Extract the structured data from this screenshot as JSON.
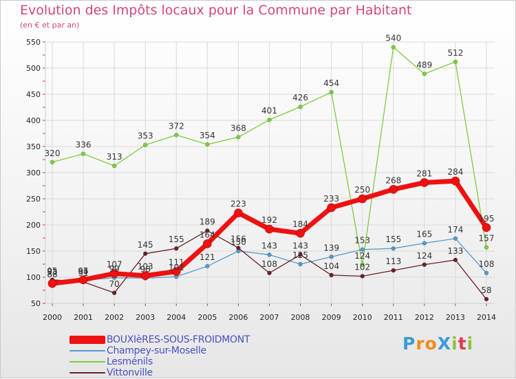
{
  "chart_data": {
    "type": "line",
    "title": "Evolution des Impôts locaux pour la Commune par Habitant",
    "subtitle": "(en € et par an)",
    "xlabel": "",
    "ylabel": "",
    "x": [
      "2000",
      "2001",
      "2002",
      "2003",
      "2004",
      "2005",
      "2006",
      "2007",
      "2008",
      "2009",
      "2010",
      "2011",
      "2012",
      "2013",
      "2014"
    ],
    "ylim": [
      50,
      550
    ],
    "yticks": [
      "50",
      "100",
      "150",
      "200",
      "250",
      "300",
      "350",
      "400",
      "450",
      "500",
      "550"
    ],
    "grid": true,
    "legend_position": "bottom-left",
    "series": [
      {
        "name": "BOUXIèRES-SOUS-FROIDMONT",
        "color": "#ee1111",
        "values": [
          88,
          95,
          107,
          103,
          111,
          164,
          223,
          192,
          184,
          233,
          250,
          268,
          281,
          284,
          195
        ]
      },
      {
        "name": "Champey-sur-Moselle",
        "color": "#5599cc",
        "values": [
          93,
          94,
          99,
          98,
          101,
          121,
          150,
          143,
          125,
          139,
          153,
          155,
          165,
          174,
          108
        ]
      },
      {
        "name": "Lesménils",
        "color": "#7ccc3c",
        "values": [
          320,
          336,
          313,
          353,
          372,
          354,
          368,
          401,
          426,
          454,
          124,
          540,
          489,
          512,
          157
        ]
      },
      {
        "name": "Vittonville",
        "color": "#6a1f2a",
        "values": [
          95,
          91,
          70,
          145,
          155,
          189,
          156,
          108,
          143,
          104,
          102,
          113,
          124,
          133,
          58
        ]
      }
    ]
  },
  "brand": {
    "text": "ProXiti",
    "letters": [
      "P",
      "r",
      "o",
      "X",
      "i",
      "t",
      "i"
    ],
    "colors": [
      "#3b9ad9",
      "#f08a1c",
      "#f08a1c",
      "#3b9ad9",
      "#8cc43c",
      "#e2374d",
      "#8cc43c"
    ]
  }
}
